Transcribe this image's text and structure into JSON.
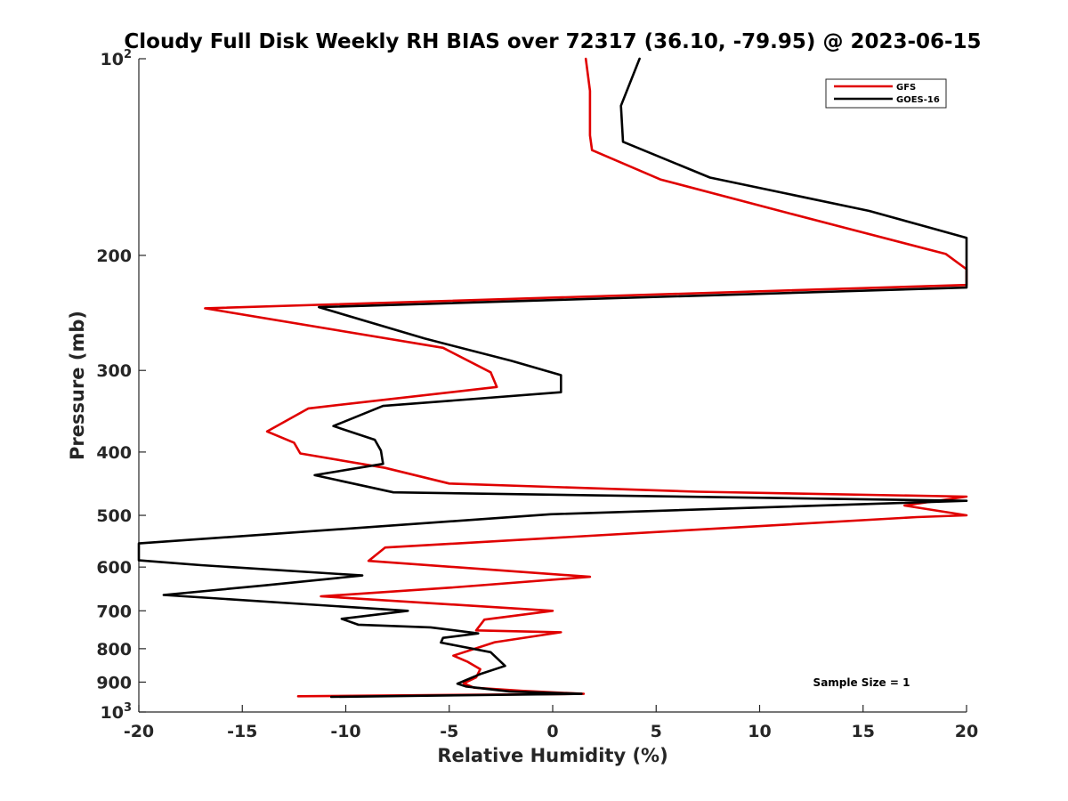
{
  "chart_data": {
    "type": "line",
    "title": "Cloudy Full Disk Weekly RH BIAS over 72317 (36.10, -79.95) @ 2023-06-15",
    "xlabel": "Relative Humidity (%)",
    "ylabel": "Pressure (mb)",
    "xlim": [
      -20,
      20
    ],
    "ylim": [
      100,
      1000
    ],
    "yscale": "log",
    "y_reversed": true,
    "grid": false,
    "legend_position": "top-right",
    "x_ticks": [
      "-20",
      "-15",
      "-10",
      "-5",
      "0",
      "5",
      "10",
      "15",
      "20"
    ],
    "y_ticks": [
      {
        "value": 100,
        "base": "10",
        "exp": "2"
      },
      {
        "value": 200,
        "label": "200"
      },
      {
        "value": 300,
        "label": "300"
      },
      {
        "value": 400,
        "label": "400"
      },
      {
        "value": 500,
        "label": "500"
      },
      {
        "value": 600,
        "label": "600"
      },
      {
        "value": 700,
        "label": "700"
      },
      {
        "value": 800,
        "label": "800"
      },
      {
        "value": 900,
        "label": "900"
      },
      {
        "value": 1000,
        "base": "10",
        "exp": "3"
      }
    ],
    "annotation": "Sample Size = 1",
    "series": [
      {
        "name": "GFS",
        "color": "#e00000",
        "points": [
          [
            1.6,
            100
          ],
          [
            1.8,
            112
          ],
          [
            1.8,
            131
          ],
          [
            1.9,
            138
          ],
          [
            5.2,
            153
          ],
          [
            11.3,
            172
          ],
          [
            19.0,
            199
          ],
          [
            20.0,
            210
          ],
          [
            20.0,
            222
          ],
          [
            -16.8,
            241
          ],
          [
            -5.3,
            277
          ],
          [
            -3.0,
            302
          ],
          [
            -2.7,
            318
          ],
          [
            -11.8,
            343
          ],
          [
            -13.8,
            372
          ],
          [
            -12.5,
            387
          ],
          [
            -12.2,
            402
          ],
          [
            -8.1,
            423
          ],
          [
            -5.0,
            447
          ],
          [
            7.0,
            460
          ],
          [
            20.0,
            468
          ],
          [
            17.0,
            483
          ],
          [
            20.0,
            500
          ],
          [
            17.6,
            503
          ],
          [
            -8.1,
            560
          ],
          [
            -8.9,
            587
          ],
          [
            1.8,
            621
          ],
          [
            -4.9,
            645
          ],
          [
            -11.2,
            665
          ],
          [
            0.0,
            700
          ],
          [
            -3.3,
            722
          ],
          [
            -3.7,
            750
          ],
          [
            0.4,
            755
          ],
          [
            -2.8,
            782
          ],
          [
            -4.8,
            820
          ],
          [
            -4.1,
            838
          ],
          [
            -3.5,
            860
          ],
          [
            -3.7,
            885
          ],
          [
            -4.3,
            904
          ],
          [
            -3.8,
            918
          ],
          [
            -1.5,
            928
          ],
          [
            1.5,
            938
          ],
          [
            -12.3,
            946
          ]
        ]
      },
      {
        "name": "GOES-16",
        "color": "#000000",
        "points": [
          [
            4.2,
            100
          ],
          [
            3.3,
            118
          ],
          [
            3.4,
            134
          ],
          [
            7.6,
            152
          ],
          [
            15.3,
            171
          ],
          [
            20.0,
            188
          ],
          [
            20.0,
            224
          ],
          [
            -11.3,
            240
          ],
          [
            -6.2,
            268
          ],
          [
            -2.0,
            290
          ],
          [
            0.4,
            305
          ],
          [
            0.4,
            324
          ],
          [
            -8.2,
            340
          ],
          [
            -10.6,
            365
          ],
          [
            -8.6,
            383
          ],
          [
            -8.3,
            398
          ],
          [
            -8.2,
            417
          ],
          [
            -11.5,
            434
          ],
          [
            -7.7,
            461
          ],
          [
            20.0,
            475
          ],
          [
            -0.1,
            498
          ],
          [
            -20.0,
            552
          ],
          [
            -20.0,
            586
          ],
          [
            -17.0,
            596
          ],
          [
            -9.2,
            618
          ],
          [
            -13.9,
            640
          ],
          [
            -18.8,
            662
          ],
          [
            -12.2,
            683
          ],
          [
            -7.0,
            700
          ],
          [
            -10.2,
            720
          ],
          [
            -9.4,
            735
          ],
          [
            -5.9,
            742
          ],
          [
            -3.6,
            758
          ],
          [
            -5.3,
            770
          ],
          [
            -5.4,
            783
          ],
          [
            -3.0,
            810
          ],
          [
            -2.3,
            850
          ],
          [
            -3.5,
            875
          ],
          [
            -4.6,
            905
          ],
          [
            -4.2,
            914
          ],
          [
            -2.1,
            930
          ],
          [
            1.4,
            938
          ],
          [
            -10.7,
            948
          ]
        ]
      }
    ]
  }
}
